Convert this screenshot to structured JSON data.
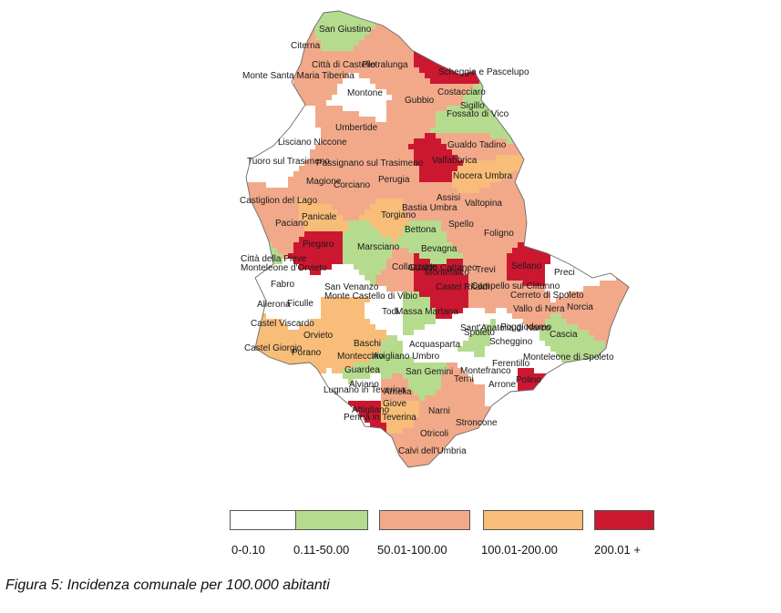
{
  "caption": "Figura 5: Incidenza comunale per 100.000 abitanti",
  "legend": [
    {
      "label": "0-0.10",
      "color": "#ffffff"
    },
    {
      "label": "0.11-50.00",
      "color": "#b5dc8e"
    },
    {
      "label": "50.01-100.00",
      "color": "#f2a98a"
    },
    {
      "label": "100.01-200.00",
      "color": "#f8bd78"
    },
    {
      "label": "200.01 +",
      "color": "#cc1731"
    }
  ],
  "municipalities": [
    {
      "name": "San Giustino",
      "class": 1
    },
    {
      "name": "Citerna",
      "class": 2
    },
    {
      "name": "Città di Castello",
      "class": 2
    },
    {
      "name": "Pietralunga",
      "class": 2
    },
    {
      "name": "Monte Santa Maria Tiberina",
      "class": 0
    },
    {
      "name": "Montone",
      "class": 0
    },
    {
      "name": "Scheggia e Pascelupo",
      "class": 4
    },
    {
      "name": "Costacciaro",
      "class": 2
    },
    {
      "name": "Sigillo",
      "class": 1
    },
    {
      "name": "Fossato di Vico",
      "class": 1
    },
    {
      "name": "Gubbio",
      "class": 2
    },
    {
      "name": "Umbertide",
      "class": 2
    },
    {
      "name": "Lisciano Niccone",
      "class": 0
    },
    {
      "name": "Gualdo Tadino",
      "class": 2
    },
    {
      "name": "Valfabbrica",
      "class": 4
    },
    {
      "name": "Tuoro sul Trasimeno",
      "class": 0
    },
    {
      "name": "Passignano sul Trasimeno",
      "class": 2
    },
    {
      "name": "Nocera Umbra",
      "class": 3
    },
    {
      "name": "Magione",
      "class": 2
    },
    {
      "name": "Corciano",
      "class": 2
    },
    {
      "name": "Perugia",
      "class": 2
    },
    {
      "name": "Castiglion del Lago",
      "class": 2
    },
    {
      "name": "Assisi",
      "class": 2
    },
    {
      "name": "Valtopina",
      "class": 2
    },
    {
      "name": "Panicale",
      "class": 3
    },
    {
      "name": "Torgiano",
      "class": 3
    },
    {
      "name": "Bastia Umbra",
      "class": 2
    },
    {
      "name": "Paciano",
      "class": 2
    },
    {
      "name": "Spello",
      "class": 2
    },
    {
      "name": "Piegaro",
      "class": 4
    },
    {
      "name": "Marsciano",
      "class": 1
    },
    {
      "name": "Bettona",
      "class": 1
    },
    {
      "name": "Foligno",
      "class": 2
    },
    {
      "name": "Città della Pieve",
      "class": 1
    },
    {
      "name": "Bevagna",
      "class": 1
    },
    {
      "name": "Monteleone d'Orvieto",
      "class": 0
    },
    {
      "name": "Collazzone",
      "class": 2
    },
    {
      "name": "Gualdo Cattaneo",
      "class": 4
    },
    {
      "name": "Montefalco",
      "class": 4
    },
    {
      "name": "Trevi",
      "class": 2
    },
    {
      "name": "Sellano",
      "class": 4
    },
    {
      "name": "Preci",
      "class": 0
    },
    {
      "name": "Fabro",
      "class": 0
    },
    {
      "name": "San Venanzo",
      "class": 0
    },
    {
      "name": "Castel Ritaldi",
      "class": 4
    },
    {
      "name": "Campello sul Clitunno",
      "class": 2
    },
    {
      "name": "Allerona",
      "class": 0
    },
    {
      "name": "Ficulle",
      "class": 0
    },
    {
      "name": "Monte Castello di Vibio",
      "class": 3
    },
    {
      "name": "Cerreto di Spoleto",
      "class": 2
    },
    {
      "name": "Norcia",
      "class": 2
    },
    {
      "name": "Todi",
      "class": 0
    },
    {
      "name": "Massa Martana",
      "class": 1
    },
    {
      "name": "Vallo di Nera",
      "class": 2
    },
    {
      "name": "Castel Viscardo",
      "class": 3
    },
    {
      "name": "Sant'Anatolia di Narco",
      "class": 0
    },
    {
      "name": "Spoleto",
      "class": 1
    },
    {
      "name": "Poggiodomo",
      "class": 0
    },
    {
      "name": "Orvieto",
      "class": 3
    },
    {
      "name": "Cascia",
      "class": 1
    },
    {
      "name": "Castel Giorgio",
      "class": 3
    },
    {
      "name": "Baschi",
      "class": 3
    },
    {
      "name": "Acquasparta",
      "class": 0
    },
    {
      "name": "Scheggino",
      "class": 0
    },
    {
      "name": "Porano",
      "class": 3
    },
    {
      "name": "Montecchio",
      "class": 3
    },
    {
      "name": "Avigliano Umbro",
      "class": 1
    },
    {
      "name": "Montefranco",
      "class": 0
    },
    {
      "name": "Monteleone di Spoleto",
      "class": 0
    },
    {
      "name": "Guardea",
      "class": 1
    },
    {
      "name": "San Gemini",
      "class": 1
    },
    {
      "name": "Terni",
      "class": 2
    },
    {
      "name": "Ferentillo",
      "class": 0
    },
    {
      "name": "Arrone",
      "class": 0
    },
    {
      "name": "Polino",
      "class": 4
    },
    {
      "name": "Lugnano in Teverina",
      "class": 0
    },
    {
      "name": "Alviano",
      "class": 0
    },
    {
      "name": "Amelia",
      "class": 2
    },
    {
      "name": "Attigliano",
      "class": 4
    },
    {
      "name": "Penna in Teverina",
      "class": 0
    },
    {
      "name": "Giove",
      "class": 3
    },
    {
      "name": "Narni",
      "class": 2
    },
    {
      "name": "Stroncone",
      "class": 2
    },
    {
      "name": "Otricoli",
      "class": 2
    },
    {
      "name": "Calvi dell'Umbria",
      "class": 2
    }
  ]
}
